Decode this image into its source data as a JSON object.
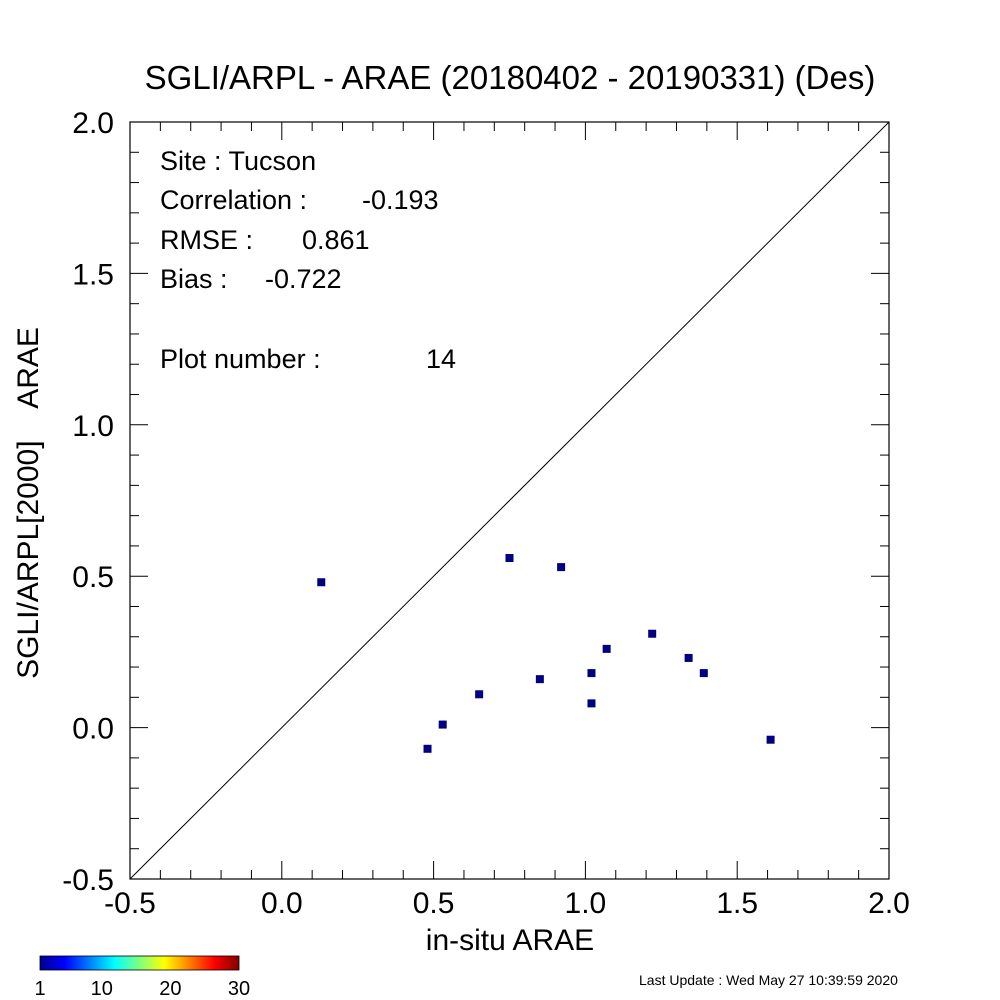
{
  "chart_data": {
    "type": "scatter",
    "title": "SGLI/ARPL - ARAE (20180402 - 20190331) (Des)",
    "xlabel": "in-situ ARAE",
    "ylabel": "SGLI/ARPL[2000]    ARAE",
    "xlim": [
      -0.5,
      2.0
    ],
    "ylim": [
      -0.5,
      2.0
    ],
    "xticks": [
      "-0.5",
      "0.0",
      "0.5",
      "1.0",
      "1.5",
      "2.0"
    ],
    "yticks": [
      "-0.5",
      "0.0",
      "0.5",
      "1.0",
      "1.5",
      "2.0"
    ],
    "reference_line": "1:1",
    "grid": false,
    "marker_color": "#000080",
    "points": [
      {
        "x": 0.13,
        "y": 0.48
      },
      {
        "x": 0.48,
        "y": -0.07
      },
      {
        "x": 0.53,
        "y": 0.01
      },
      {
        "x": 0.65,
        "y": 0.11
      },
      {
        "x": 0.75,
        "y": 0.56
      },
      {
        "x": 0.85,
        "y": 0.16
      },
      {
        "x": 0.92,
        "y": 0.53
      },
      {
        "x": 1.02,
        "y": 0.18
      },
      {
        "x": 1.02,
        "y": 0.08
      },
      {
        "x": 1.07,
        "y": 0.26
      },
      {
        "x": 1.22,
        "y": 0.31
      },
      {
        "x": 1.34,
        "y": 0.23
      },
      {
        "x": 1.39,
        "y": 0.18
      },
      {
        "x": 1.61,
        "y": -0.04
      }
    ],
    "stats": {
      "site": "Site : Tucson",
      "correlation_label": "Correlation :",
      "correlation_value": "-0.193",
      "rmse_label": "RMSE :",
      "rmse_value": "0.861",
      "bias_label": "Bias :",
      "bias_value": "-0.722",
      "plot_number_label": "Plot number :",
      "plot_number_value": "14"
    },
    "colorbar": {
      "min": 1,
      "max": 30,
      "tick_labels": [
        "1",
        "10",
        "20",
        "30"
      ],
      "colormap": "jet"
    }
  },
  "footer": {
    "last_update": "Last Update : Wed May 27 10:39:59 2020"
  }
}
